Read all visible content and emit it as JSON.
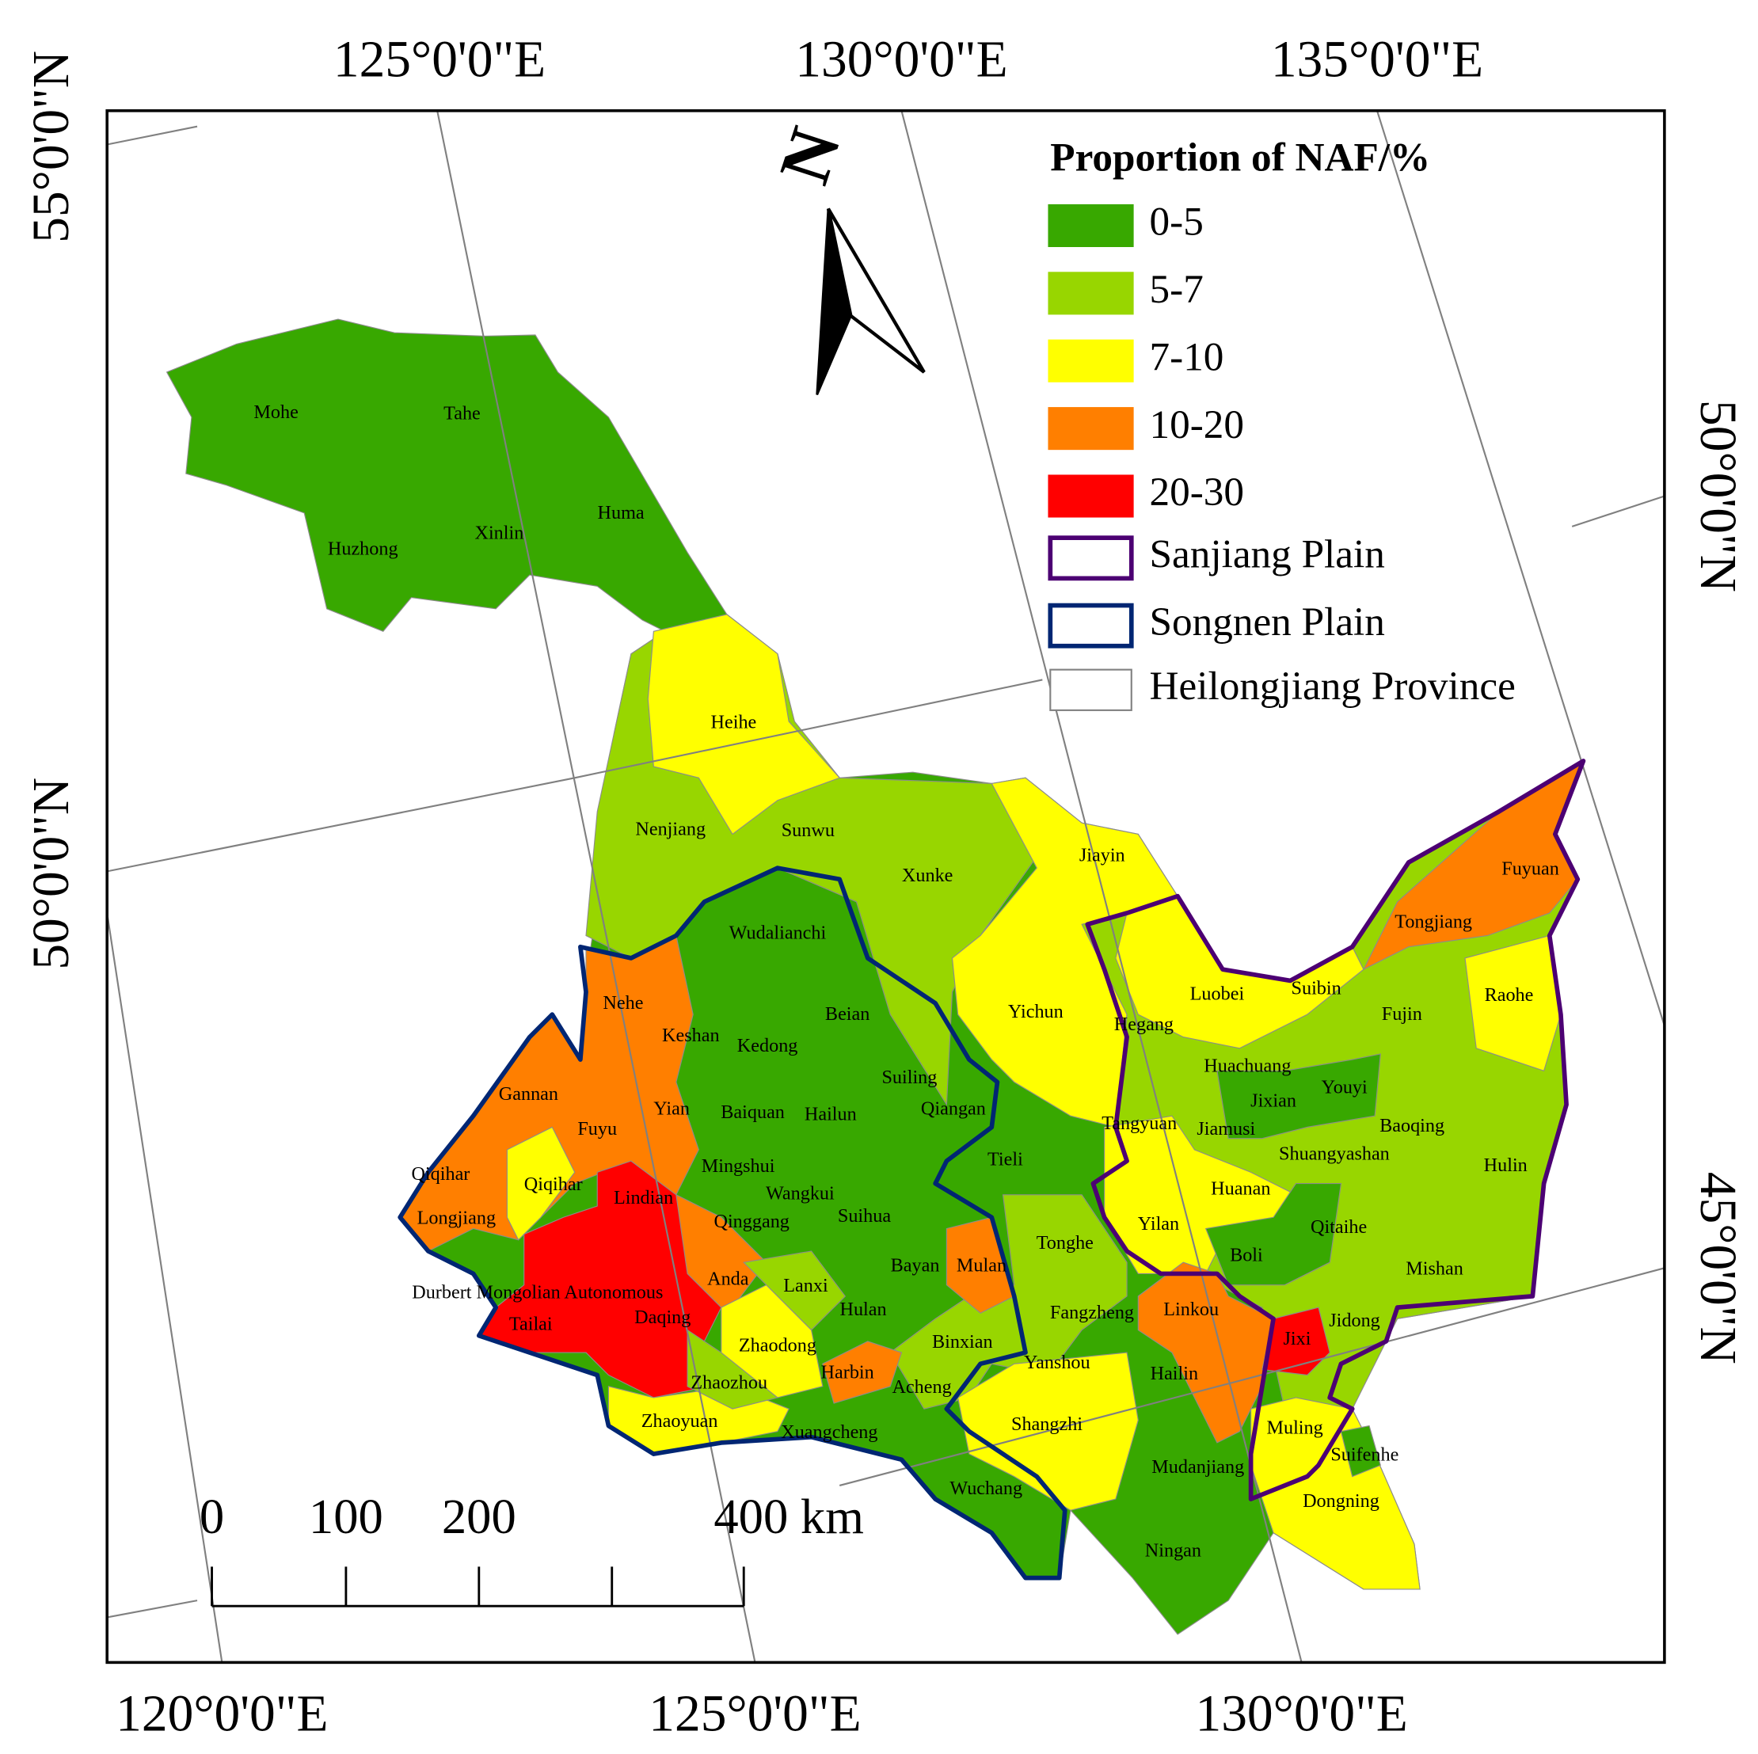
{
  "graticule_labels": {
    "top": [
      "125°0'0\"E",
      "130°0'0\"E",
      "135°0'0\"E"
    ],
    "bottom": [
      "120°0'0\"E",
      "125°0'0\"E",
      "130°0'0\"E"
    ],
    "left": [
      "55°0'0\"N",
      "50°0'0\"N"
    ],
    "right": [
      "50°0'0\"N",
      "45°0'0\"N"
    ]
  },
  "north_arrow": "N",
  "legend": {
    "title": "Proportion of NAF/%",
    "items": [
      {
        "label": "0-5",
        "color": "#38a800"
      },
      {
        "label": "5-7",
        "color": "#98d600"
      },
      {
        "label": "7-10",
        "color": "#ffff00"
      },
      {
        "label": "10-20",
        "color": "#ff7f00"
      },
      {
        "label": "20-30",
        "color": "#ff0000"
      },
      {
        "label": "Sanjiang Plain",
        "color": "#4c0073"
      },
      {
        "label": "Songnen Plain",
        "color": "#002673"
      },
      {
        "label": "Heilongjiang Province",
        "color": "#828282"
      }
    ]
  },
  "scale_bar": {
    "labels": [
      "0",
      "100",
      "200",
      "400 km"
    ]
  },
  "counties": [
    "Mohe",
    "Tahe",
    "Huzhong",
    "Xinlin",
    "Huma",
    "Heihe",
    "Nenjiang",
    "Sunwu",
    "Xunke",
    "Jiayin",
    "Wudalianchi",
    "Tongjiang",
    "Fuyuan",
    "Luobei",
    "Suibin",
    "Fujin",
    "Raohe",
    "Nehe",
    "Beian",
    "Yichun",
    "Hegang",
    "Keshan",
    "Kedong",
    "Huachuang",
    "Gannan",
    "Suiling",
    "Youyi",
    "Yian",
    "Baiquan",
    "Hailun",
    "Qiangan",
    "Jixian",
    "Tangyuan",
    "Jiamusi",
    "Baoqing",
    "Fuyu",
    "Shuangyashan",
    "Tieli",
    "Mingshui",
    "Hulin",
    "Qiqihar",
    "Qiqihar",
    "Huanan",
    "Wangkui",
    "Lindian",
    "Longjiang",
    "Qinggang",
    "Suihua",
    "Yilan",
    "Qitaihe",
    "Tonghe",
    "Boli",
    "Bayan",
    "Mulan",
    "Mishan",
    "Anda",
    "Lanxi",
    "Durbert Mongolian Autonomous",
    "Fangzheng",
    "Hulan",
    "Linkou",
    "Daqing",
    "Tailai",
    "Jidong",
    "Jixi",
    "Binxian",
    "Zhaodong",
    "Yanshou",
    "Hailin",
    "Harbin",
    "Zhaozhou",
    "Acheng",
    "Shangzhi",
    "Zhaoyuan",
    "Muling",
    "Xuangcheng",
    "Suifenhe",
    "Mudanjiang",
    "Wuchang",
    "Dongning",
    "Ningan"
  ]
}
